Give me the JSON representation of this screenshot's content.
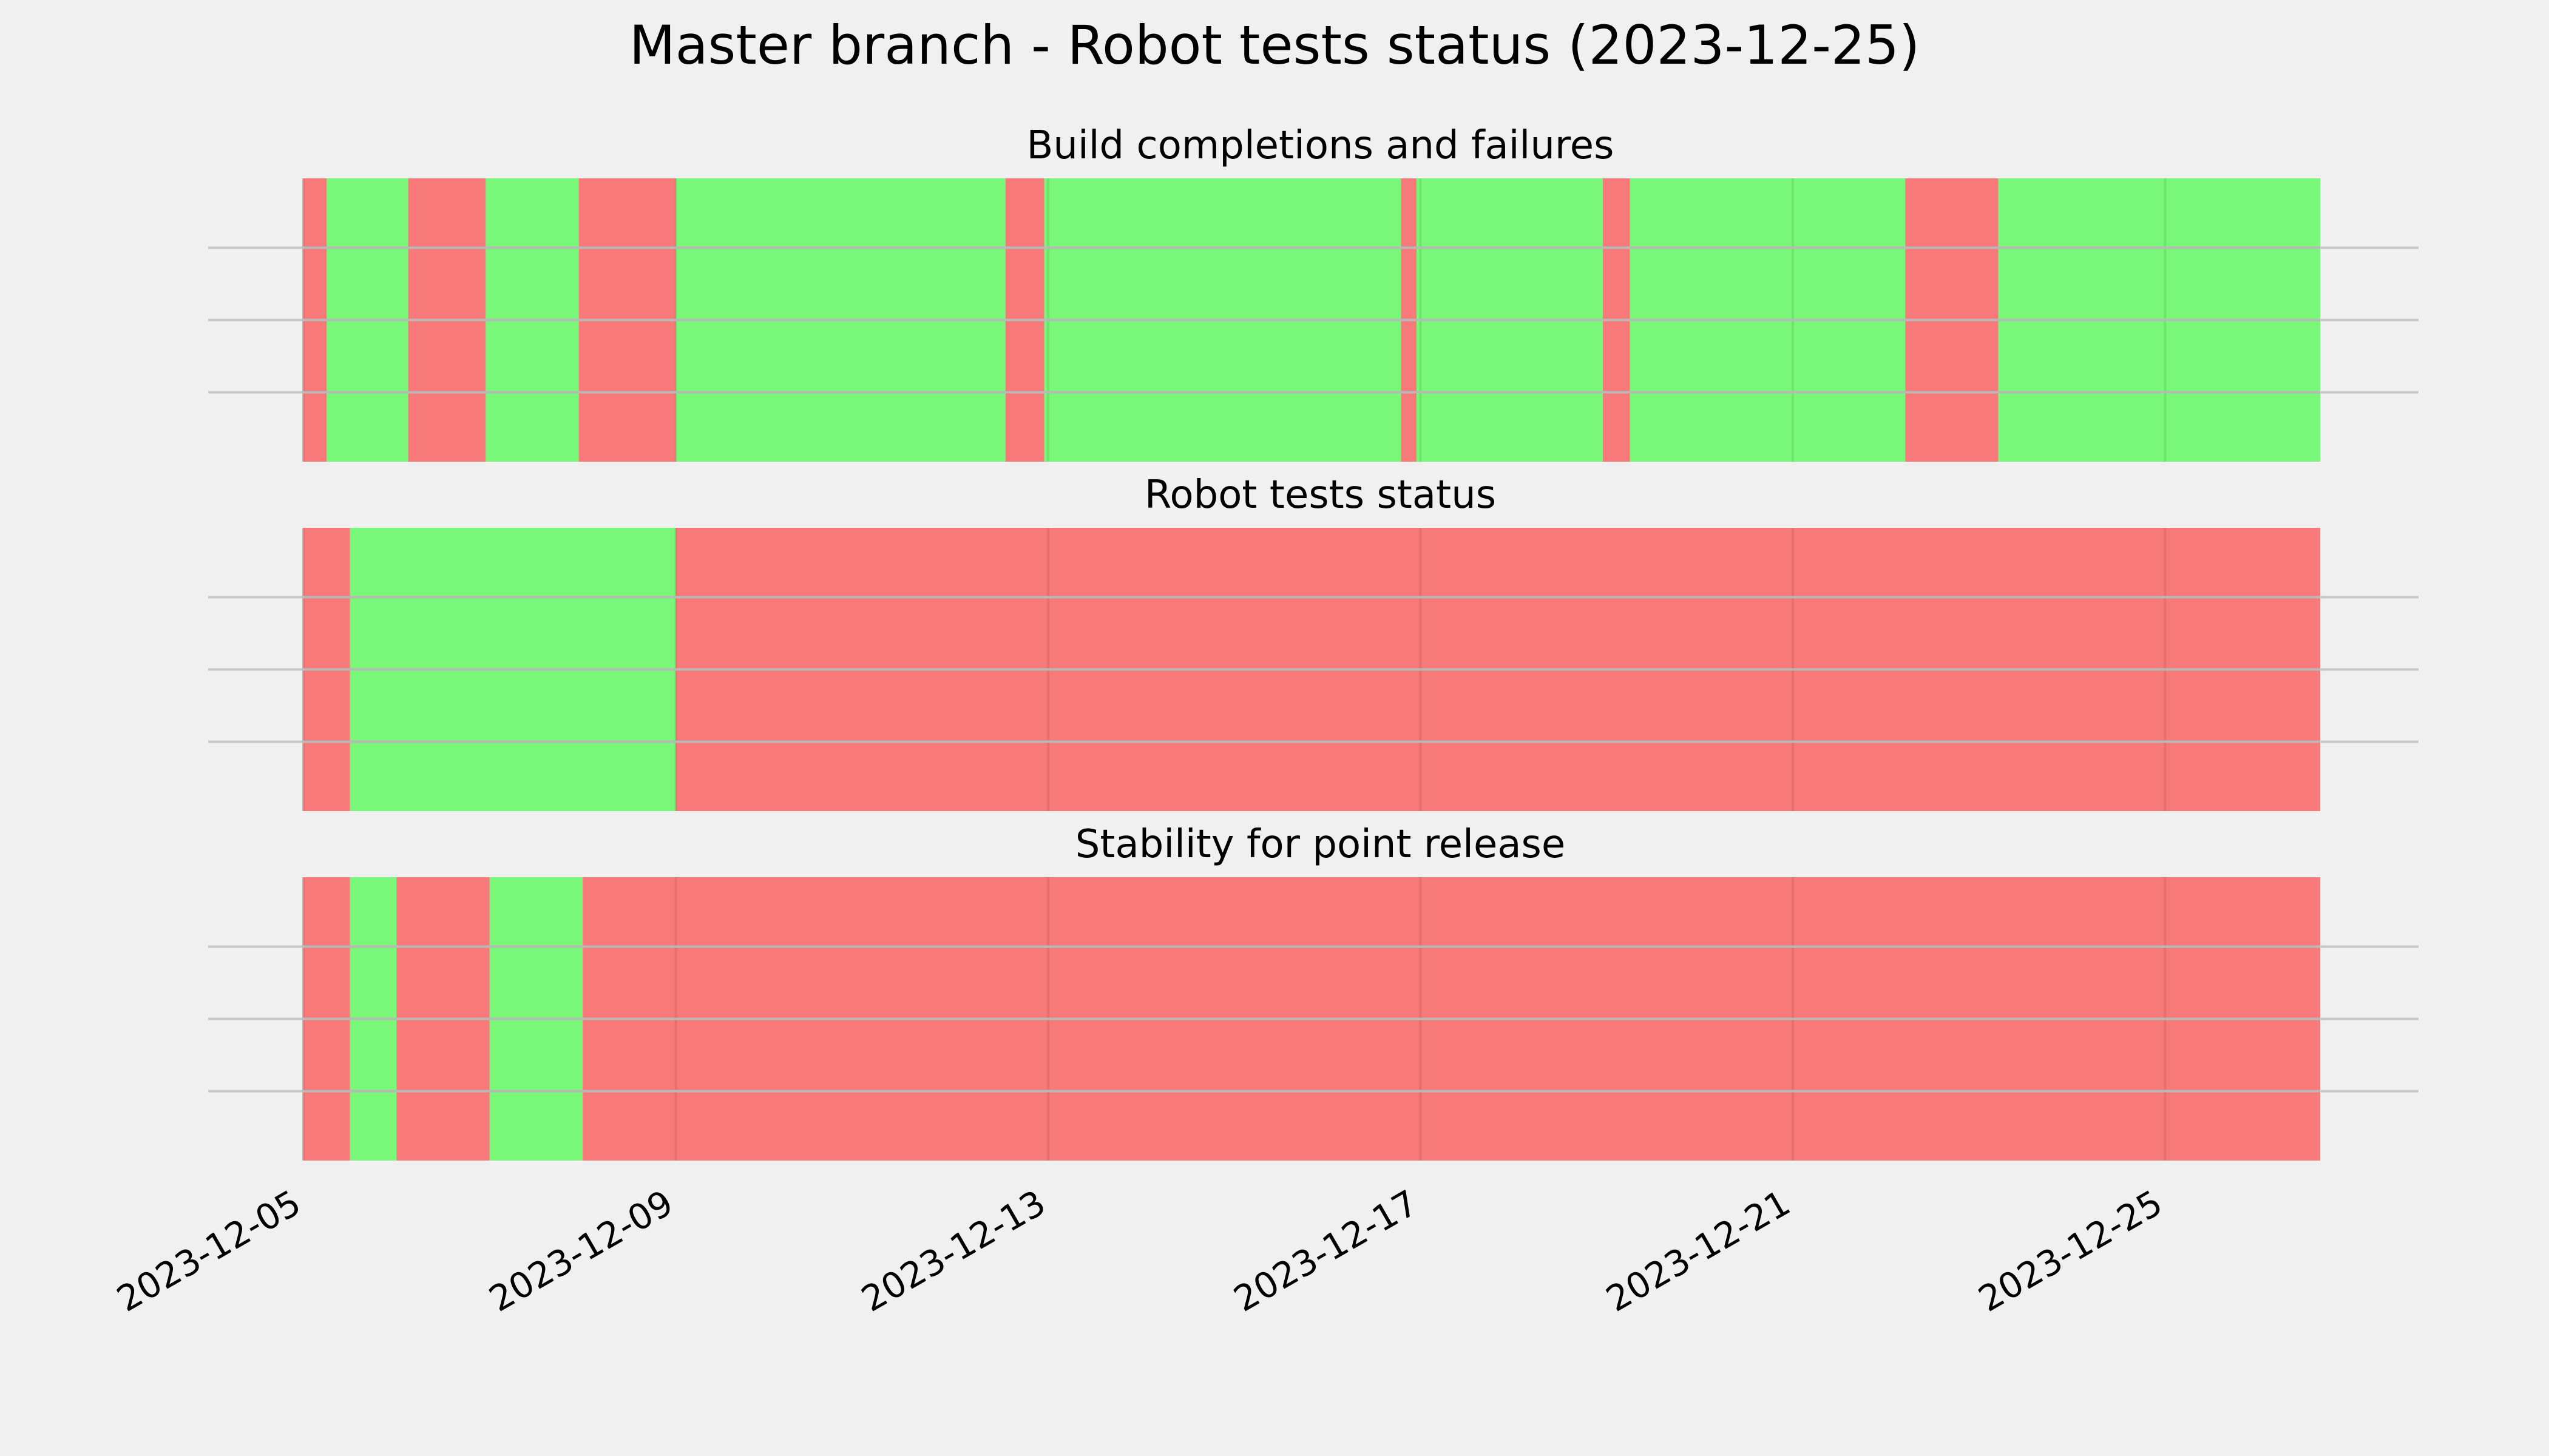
{
  "chart_data": {
    "type": "timeline",
    "title": "Master branch - Robot tests status (2023-12-25)",
    "x_range": [
      "2023-12-05",
      "2023-12-26T16:00"
    ],
    "x_ticks": [
      "2023-12-05",
      "2023-12-09",
      "2023-12-13",
      "2023-12-17",
      "2023-12-21",
      "2023-12-25"
    ],
    "grid": true,
    "colors": {
      "pass": "#74f774",
      "fail": "#f77575",
      "background": "#f0f0f0",
      "grid": "#c8c8c8"
    },
    "panels": [
      {
        "title": "Build completions and failures",
        "segments": [
          {
            "start": "2023-12-05T00:00",
            "end": "2023-12-05T06:00",
            "status": "fail"
          },
          {
            "start": "2023-12-05T06:00",
            "end": "2023-12-06T03:00",
            "status": "pass"
          },
          {
            "start": "2023-12-06T03:00",
            "end": "2023-12-06T23:00",
            "status": "fail"
          },
          {
            "start": "2023-12-06T23:00",
            "end": "2023-12-07T23:00",
            "status": "pass"
          },
          {
            "start": "2023-12-07T23:00",
            "end": "2023-12-09T00:00",
            "status": "fail"
          },
          {
            "start": "2023-12-09T00:00",
            "end": "2023-12-12T13:00",
            "status": "pass"
          },
          {
            "start": "2023-12-12T13:00",
            "end": "2023-12-12T23:00",
            "status": "fail"
          },
          {
            "start": "2023-12-12T23:00",
            "end": "2023-12-16T19:00",
            "status": "pass"
          },
          {
            "start": "2023-12-16T19:00",
            "end": "2023-12-16T23:00",
            "status": "fail"
          },
          {
            "start": "2023-12-16T23:00",
            "end": "2023-12-18T23:00",
            "status": "pass"
          },
          {
            "start": "2023-12-18T23:00",
            "end": "2023-12-19T06:00",
            "status": "fail"
          },
          {
            "start": "2023-12-19T06:00",
            "end": "2023-12-22T05:00",
            "status": "pass"
          },
          {
            "start": "2023-12-22T05:00",
            "end": "2023-12-23T05:00",
            "status": "fail"
          },
          {
            "start": "2023-12-23T05:00",
            "end": "2023-12-26T16:00",
            "status": "pass"
          }
        ]
      },
      {
        "title": "Robot tests status",
        "segments": [
          {
            "start": "2023-12-05T00:00",
            "end": "2023-12-05T12:00",
            "status": "fail"
          },
          {
            "start": "2023-12-05T12:00",
            "end": "2023-12-09T00:00",
            "status": "pass"
          },
          {
            "start": "2023-12-09T00:00",
            "end": "2023-12-26T16:00",
            "status": "fail"
          }
        ]
      },
      {
        "title": "Stability for point release",
        "segments": [
          {
            "start": "2023-12-05T00:00",
            "end": "2023-12-05T12:00",
            "status": "fail"
          },
          {
            "start": "2023-12-05T12:00",
            "end": "2023-12-06T00:00",
            "status": "pass"
          },
          {
            "start": "2023-12-06T00:00",
            "end": "2023-12-07T00:00",
            "status": "fail"
          },
          {
            "start": "2023-12-07T00:00",
            "end": "2023-12-08T00:00",
            "status": "pass"
          },
          {
            "start": "2023-12-08T00:00",
            "end": "2023-12-26T16:00",
            "status": "fail"
          }
        ]
      }
    ]
  }
}
